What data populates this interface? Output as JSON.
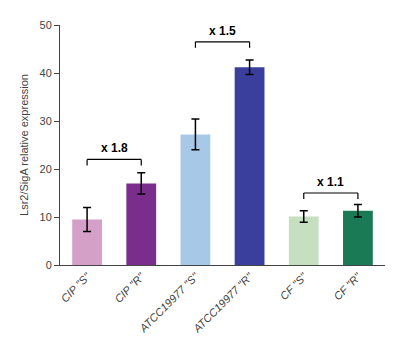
{
  "chart_data": {
    "type": "bar",
    "categories": [
      "CIP \"S\"",
      "CIP \"R\"",
      "ATCC19977 \"S\"",
      "ATCC19977 \"R\"",
      "CF \"S\"",
      "CF \"R\""
    ],
    "values": [
      9.5,
      17.0,
      27.2,
      41.2,
      10.1,
      11.3
    ],
    "errors": [
      2.5,
      2.2,
      3.2,
      1.5,
      1.2,
      1.3
    ],
    "colors": [
      "#d4a0c8",
      "#7b2d8b",
      "#a8c8e8",
      "#3a3f9e",
      "#c5dfc0",
      "#1a7a55"
    ],
    "ylabel": "Lsr2/SigA relative expression",
    "ylim": [
      0,
      50
    ],
    "yticks": [
      0,
      10,
      20,
      30,
      40,
      50
    ],
    "grid": false,
    "annotations": [
      {
        "text": "x 1.8",
        "from": "CIP \"S\"",
        "to": "CIP \"R\"",
        "y": 22.0
      },
      {
        "text": "x 1.5",
        "from": "ATCC19977 \"S\"",
        "to": "ATCC19977 \"R\"",
        "y": 46.5
      },
      {
        "text": "x 1.1",
        "from": "CF \"S\"",
        "to": "CF \"R\"",
        "y": 15.0
      }
    ]
  }
}
